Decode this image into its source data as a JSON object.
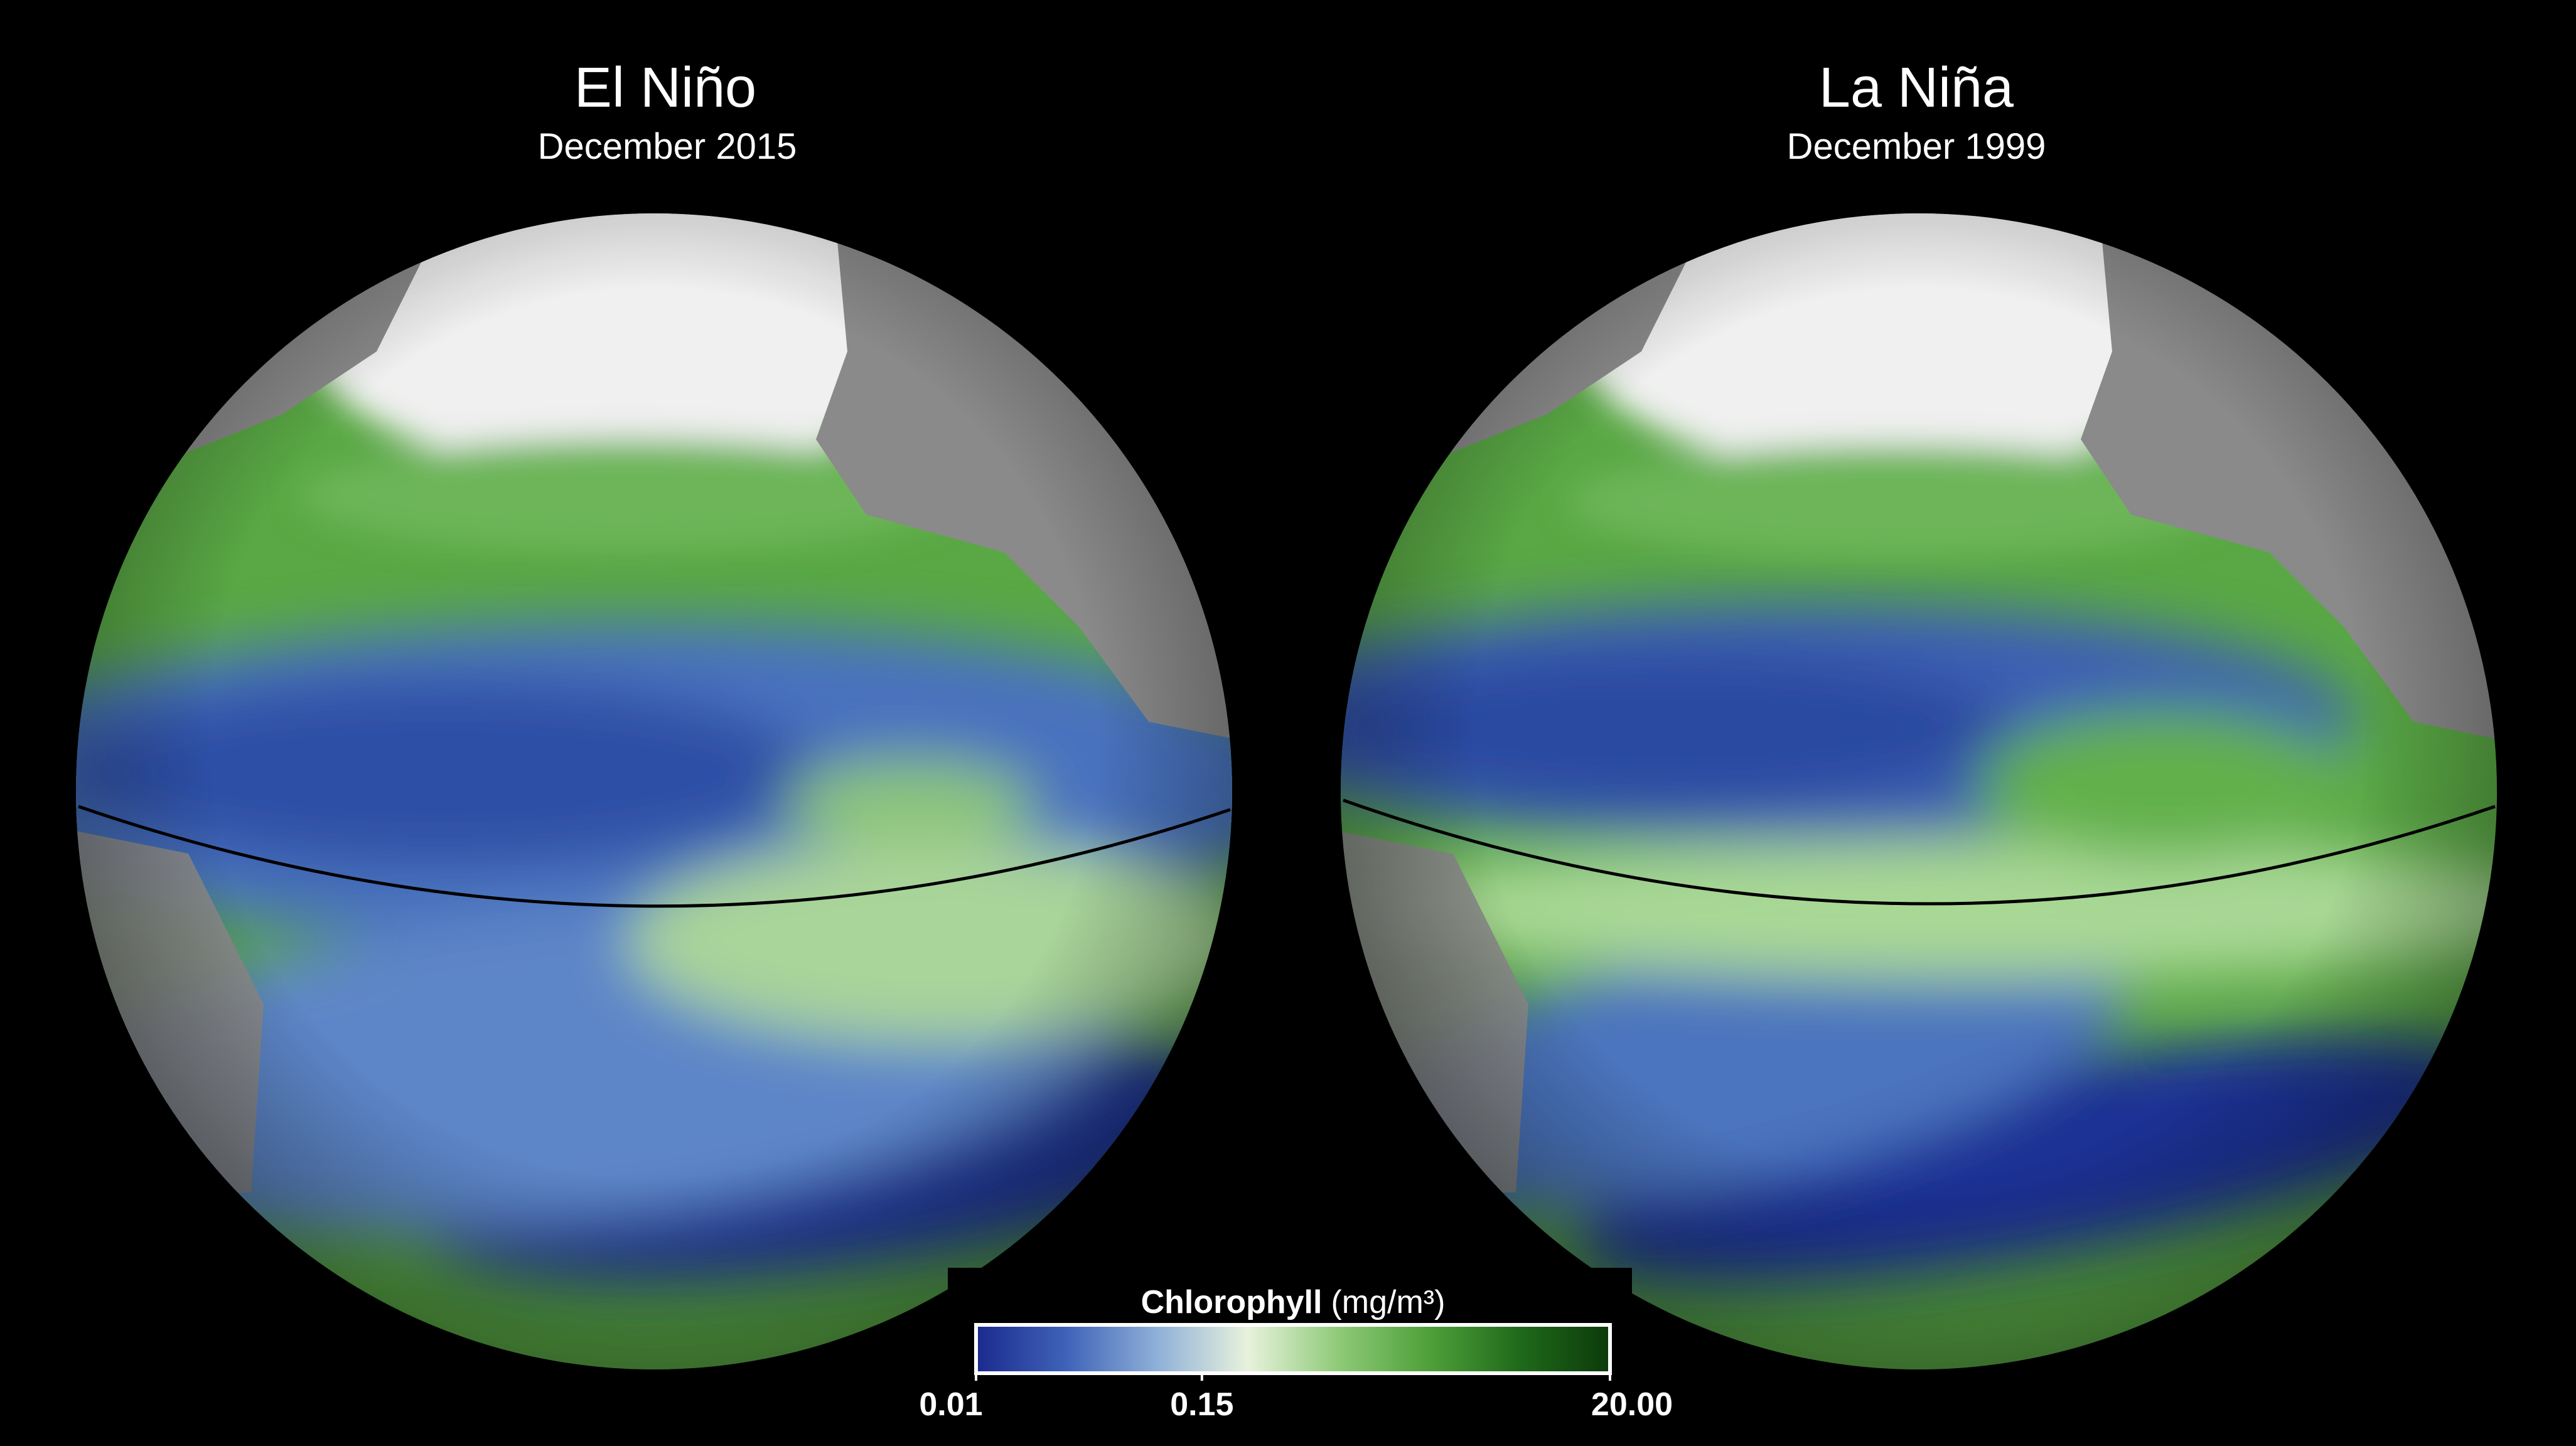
{
  "panels": [
    {
      "title": "El Niño",
      "subtitle": "December 2015"
    },
    {
      "title": "La Niña",
      "subtitle": "December 1999"
    }
  ],
  "legend": {
    "label": "Chlorophyll",
    "unit": "(mg/m³)",
    "scale": "log",
    "range": [
      0.01,
      20
    ],
    "colors": [
      "#1b2a8e",
      "#3f63b8",
      "#8fb0d8",
      "#e8f2dc",
      "#8fca78",
      "#4ea03a",
      "#1f6a1a",
      "#0c3a0a"
    ],
    "ticks": [
      {
        "value": 0.01,
        "label": "0.01"
      },
      {
        "value": 0.15,
        "label": "0.15"
      },
      {
        "value": 20,
        "label": "20.00"
      }
    ]
  }
}
